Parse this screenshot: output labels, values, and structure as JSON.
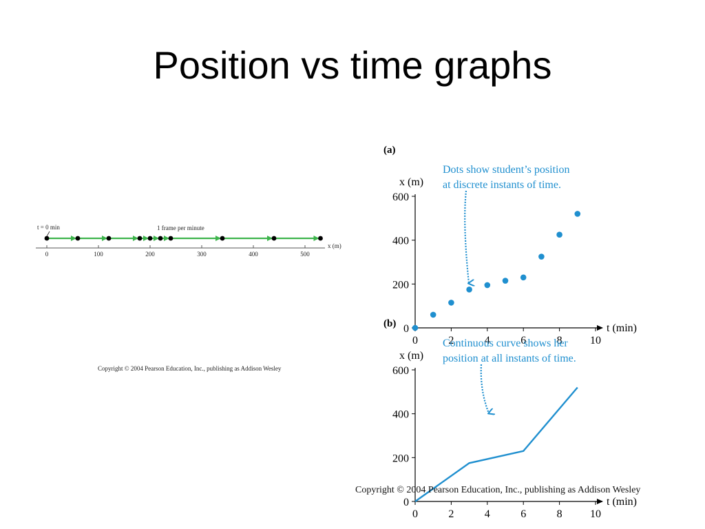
{
  "slide": {
    "title": "Position vs time graphs",
    "copyright_small": "Copyright © 2004 Pearson Education, Inc., publishing as Addison Wesley",
    "copyright_large": "Copyright © 2004 Pearson Education, Inc., publishing as Addison Wesley"
  },
  "colors": {
    "accent": "#1f8fcf",
    "arrow_green": "#3cb44b",
    "axis": "#000000"
  },
  "chart_data": [
    {
      "type": "scatter",
      "title": "",
      "frame_label": "1 frame per minute",
      "start_label": "t = 0 min",
      "xlabel": "x (m)",
      "ticks": [
        0,
        100,
        200,
        300,
        400,
        500
      ],
      "xlim": [
        0,
        530
      ],
      "positions": [
        0,
        60,
        120,
        180,
        200,
        220,
        240,
        340,
        440,
        530
      ]
    },
    {
      "type": "scatter",
      "panel_label": "(a)",
      "annotation": [
        "Dots show student’s position",
        "at discrete instants of time."
      ],
      "xlabel": "t (min)",
      "ylabel": "x (m)",
      "xlim": [
        0,
        10
      ],
      "ylim": [
        0,
        600
      ],
      "xticks": [
        0,
        2,
        4,
        6,
        8,
        10
      ],
      "yticks": [
        0,
        200,
        400,
        600
      ],
      "x": [
        0,
        1,
        2,
        3,
        4,
        5,
        6,
        7,
        8,
        9
      ],
      "y": [
        0,
        60,
        115,
        175,
        195,
        215,
        230,
        325,
        425,
        520
      ]
    },
    {
      "type": "line",
      "panel_label": "(b)",
      "annotation": [
        "Continuous curve shows her",
        "position at all instants of time."
      ],
      "xlabel": "t (min)",
      "ylabel": "x (m)",
      "xlim": [
        0,
        10
      ],
      "ylim": [
        0,
        600
      ],
      "xticks": [
        0,
        2,
        4,
        6,
        8,
        10
      ],
      "yticks": [
        0,
        200,
        400,
        600
      ],
      "x": [
        0,
        3,
        6,
        9
      ],
      "y": [
        0,
        175,
        230,
        520
      ]
    }
  ]
}
